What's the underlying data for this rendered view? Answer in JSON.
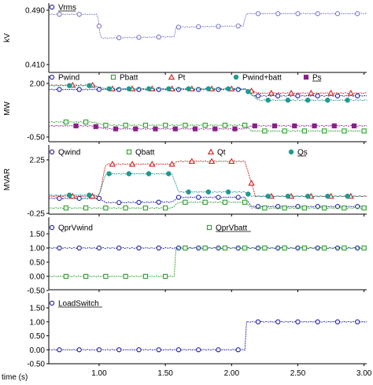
{
  "x_axis": {
    "label": "time (s)",
    "ticks": [
      "1.00",
      "1.50",
      "2.00",
      "2.50",
      "3.00"
    ],
    "tick_values": [
      1.0,
      1.5,
      2.0,
      2.5,
      3.0
    ],
    "range": [
      0.62,
      3.02
    ]
  },
  "chart_data": [
    {
      "type": "line",
      "ylabel": "kV",
      "ylim": [
        0.41,
        0.49
      ],
      "yticks": [
        "0.490",
        "0.410"
      ],
      "legend": [
        {
          "name": "Vrms",
          "marker": "circle",
          "color": "#1f1fa8",
          "underline": true
        }
      ],
      "series": [
        {
          "name": "Vrms",
          "color": "#7a7acc",
          "marker": "circle",
          "x": [
            0.62,
            0.99,
            1.01,
            1.57,
            1.58,
            2.09,
            2.11,
            3.02
          ],
          "y": [
            0.484,
            0.484,
            0.449,
            0.451,
            0.465,
            0.467,
            0.485,
            0.485
          ]
        }
      ]
    },
    {
      "type": "line",
      "ylabel": "MW",
      "ylim": [
        -0.5,
        2.0
      ],
      "yticks": [
        "2.00",
        "-0.50"
      ],
      "legend": [
        {
          "name": "Pwind",
          "marker": "circle",
          "color": "#1f1fa8"
        },
        {
          "name": "Pbatt",
          "marker": "square",
          "color": "#2ea02e"
        },
        {
          "name": "Pt",
          "marker": "triangle",
          "color": "#d02020"
        },
        {
          "name": "Pwind+batt",
          "marker": "dot",
          "color": "#1f9a8f"
        },
        {
          "name": "Ps",
          "marker": "filledsquare",
          "color": "#8a1f8a",
          "underline": true
        }
      ],
      "series": [
        {
          "name": "Pwind",
          "color": "#1f1fa8",
          "marker": "circle",
          "x": [
            0.62,
            2.12,
            2.16,
            3.02
          ],
          "y": [
            1.72,
            1.72,
            1.42,
            1.42
          ]
        },
        {
          "name": "Pbatt",
          "color": "#2ea02e",
          "marker": "square",
          "x": [
            0.62,
            0.95,
            1.05,
            2.1,
            2.15,
            3.02
          ],
          "y": [
            0.2,
            0.2,
            0.05,
            0.05,
            -0.22,
            -0.22
          ]
        },
        {
          "name": "Pt",
          "color": "#d02020",
          "marker": "triangle",
          "x": [
            0.62,
            0.95,
            1.05,
            2.1,
            2.2,
            3.02
          ],
          "y": [
            1.92,
            1.92,
            1.75,
            1.75,
            1.55,
            1.55
          ]
        },
        {
          "name": "Pwind+batt",
          "color": "#1f9a8f",
          "marker": "dot",
          "x": [
            0.62,
            0.95,
            1.05,
            2.1,
            2.2,
            3.02
          ],
          "y": [
            1.9,
            1.9,
            1.75,
            1.75,
            1.22,
            1.22
          ]
        },
        {
          "name": "Ps",
          "color": "#8a1f8a",
          "marker": "filledsquare",
          "x": [
            0.62,
            0.95,
            1.05,
            2.1,
            2.15,
            3.02
          ],
          "y": [
            0.02,
            0.02,
            -0.12,
            -0.12,
            0.02,
            0.02
          ]
        }
      ]
    },
    {
      "type": "line",
      "ylabel": "MVAR",
      "ylim": [
        -0.25,
        2.25
      ],
      "yticks": [
        "2.25",
        "-0.25"
      ],
      "legend": [
        {
          "name": "Qwind",
          "marker": "circle",
          "color": "#1f1fa8"
        },
        {
          "name": "Qbatt",
          "marker": "square",
          "color": "#2ea02e"
        },
        {
          "name": "Qt",
          "marker": "triangle",
          "color": "#d02020"
        },
        {
          "name": "Qs",
          "marker": "dot",
          "color": "#1f9a8f",
          "underline": true
        }
      ],
      "series": [
        {
          "name": "Qwind",
          "color": "#1f1fa8",
          "marker": "circle",
          "x": [
            0.62,
            1.0,
            1.05,
            1.55,
            1.6,
            2.1,
            2.15,
            3.02
          ],
          "y": [
            0.45,
            0.45,
            0.25,
            0.28,
            0.5,
            0.5,
            0.07,
            0.07
          ]
        },
        {
          "name": "Qbatt",
          "color": "#2ea02e",
          "marker": "square",
          "x": [
            0.62,
            1.55,
            1.6,
            2.1,
            2.15,
            3.02
          ],
          "y": [
            0.0,
            0.0,
            0.27,
            0.27,
            0.0,
            0.0
          ]
        },
        {
          "name": "Qt",
          "color": "#d02020",
          "marker": "triangle",
          "x": [
            0.62,
            1.0,
            1.05,
            1.55,
            1.6,
            2.1,
            2.18,
            3.02
          ],
          "y": [
            0.55,
            0.55,
            2.05,
            2.05,
            2.18,
            2.18,
            0.55,
            0.55
          ]
        },
        {
          "name": "Qs",
          "color": "#1f9a8f",
          "marker": "dot",
          "x": [
            0.62,
            1.0,
            1.05,
            1.55,
            1.6,
            2.1,
            2.15,
            3.02
          ],
          "y": [
            0.6,
            0.6,
            1.6,
            1.6,
            0.75,
            0.75,
            0.55,
            0.55
          ]
        }
      ]
    },
    {
      "type": "line",
      "ylim": [
        -0.5,
        1.5
      ],
      "yticks": [
        "1.50",
        "1.00",
        "0.50",
        "0.00",
        "-0.50"
      ],
      "ytick_values": [
        1.5,
        1.0,
        0.5,
        0.0,
        -0.5
      ],
      "legend": [
        {
          "name": "QprVwind",
          "marker": "circle",
          "color": "#1f1fa8"
        },
        {
          "name": "QprVbatt",
          "marker": "square",
          "color": "#2ea02e",
          "underline": true
        }
      ],
      "series": [
        {
          "name": "QprVwind",
          "color": "#1f1fa8",
          "marker": "circle",
          "x": [
            0.62,
            3.02
          ],
          "y": [
            1.0,
            1.0
          ]
        },
        {
          "name": "QprVbatt",
          "color": "#2ea02e",
          "marker": "square",
          "x": [
            0.62,
            1.57,
            1.58,
            3.02
          ],
          "y": [
            0.0,
            0.0,
            1.0,
            1.0
          ]
        }
      ]
    },
    {
      "type": "line",
      "ylim": [
        -0.5,
        1.5
      ],
      "yticks": [
        "1.50",
        "1.00",
        "0.50",
        "0.00",
        "-0.50"
      ],
      "ytick_values": [
        1.5,
        1.0,
        0.5,
        0.0,
        -0.5
      ],
      "legend": [
        {
          "name": "LoadSwitch",
          "marker": "circle",
          "color": "#1f1fa8",
          "underline": true
        }
      ],
      "series": [
        {
          "name": "LoadSwitch",
          "color": "#1f1fa8",
          "marker": "circle",
          "x": [
            0.62,
            2.1,
            2.11,
            3.02
          ],
          "y": [
            0.0,
            0.0,
            1.0,
            1.0
          ]
        }
      ]
    }
  ]
}
